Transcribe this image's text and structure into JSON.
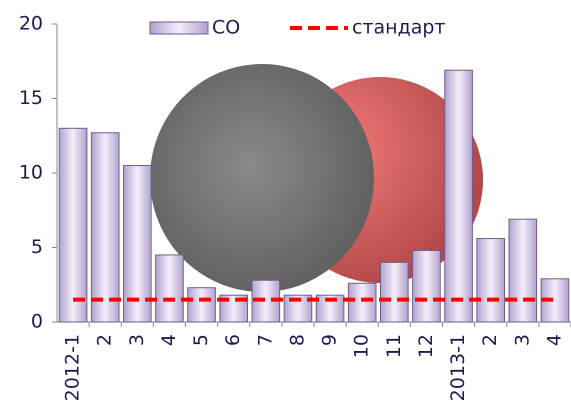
{
  "chart_data": {
    "type": "bar",
    "categories": [
      "2012-1",
      "2",
      "3",
      "4",
      "5",
      "6",
      "7",
      "8",
      "9",
      "10",
      "11",
      "12",
      "2013-1",
      "2",
      "3",
      "4"
    ],
    "series": [
      {
        "name": "CO",
        "color": "#b3a2cf",
        "type": "bar",
        "values": [
          13,
          12.7,
          10.5,
          4.5,
          2.3,
          1.8,
          2.8,
          1.8,
          1.8,
          2.6,
          4.0,
          4.8,
          16.9,
          5.6,
          6.9,
          2.9
        ]
      },
      {
        "name": "стандарт",
        "color": "#ff0000",
        "type": "line",
        "values": [
          1.5,
          1.5,
          1.5,
          1.5,
          1.5,
          1.5,
          1.5,
          1.5,
          1.5,
          1.5,
          1.5,
          1.5,
          1.5,
          1.5,
          1.5,
          1.5
        ]
      }
    ],
    "ylim": [
      0,
      20
    ],
    "yticks": [
      0,
      5,
      10,
      15,
      20
    ]
  }
}
